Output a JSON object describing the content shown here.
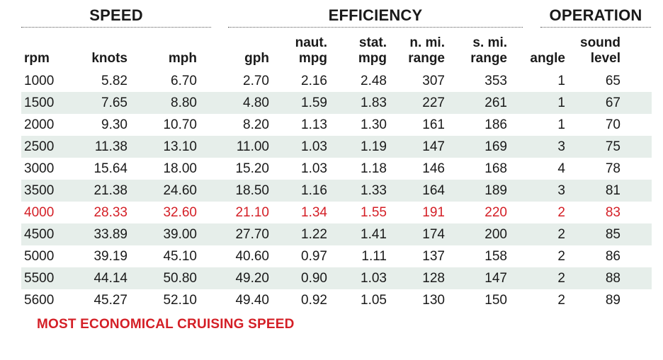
{
  "sections": {
    "speed": "SPEED",
    "efficiency": "EFFICIENCY",
    "operation": "OPERATION"
  },
  "headers": {
    "rpm": [
      "",
      "rpm"
    ],
    "knots": [
      "",
      "knots"
    ],
    "mph": [
      "",
      "mph"
    ],
    "gph": [
      "",
      "gph"
    ],
    "naut_mpg": [
      "naut.",
      "mpg"
    ],
    "stat_mpg": [
      "stat.",
      "mpg"
    ],
    "n_range": [
      "n. mi.",
      "range"
    ],
    "s_range": [
      "s. mi.",
      "range"
    ],
    "angle": [
      "",
      "angle"
    ],
    "sound": [
      "sound",
      "level"
    ]
  },
  "rows": [
    [
      "1000",
      "5.82",
      "6.70",
      "2.70",
      "2.16",
      "2.48",
      "307",
      "353",
      "1",
      "65"
    ],
    [
      "1500",
      "7.65",
      "8.80",
      "4.80",
      "1.59",
      "1.83",
      "227",
      "261",
      "1",
      "67"
    ],
    [
      "2000",
      "9.30",
      "10.70",
      "8.20",
      "1.13",
      "1.30",
      "161",
      "186",
      "1",
      "70"
    ],
    [
      "2500",
      "11.38",
      "13.10",
      "11.00",
      "1.03",
      "1.19",
      "147",
      "169",
      "3",
      "75"
    ],
    [
      "3000",
      "15.64",
      "18.00",
      "15.20",
      "1.03",
      "1.18",
      "146",
      "168",
      "4",
      "78"
    ],
    [
      "3500",
      "21.38",
      "24.60",
      "18.50",
      "1.16",
      "1.33",
      "164",
      "189",
      "3",
      "81"
    ],
    [
      "4000",
      "28.33",
      "32.60",
      "21.10",
      "1.34",
      "1.55",
      "191",
      "220",
      "2",
      "83"
    ],
    [
      "4500",
      "33.89",
      "39.00",
      "27.70",
      "1.22",
      "1.41",
      "174",
      "200",
      "2",
      "85"
    ],
    [
      "5000",
      "39.19",
      "45.10",
      "40.60",
      "0.97",
      "1.11",
      "137",
      "158",
      "2",
      "86"
    ],
    [
      "5500",
      "44.14",
      "50.80",
      "49.20",
      "0.90",
      "1.03",
      "128",
      "147",
      "2",
      "88"
    ],
    [
      "5600",
      "45.27",
      "52.10",
      "49.40",
      "0.92",
      "1.05",
      "130",
      "150",
      "2",
      "89"
    ]
  ],
  "highlight_row_index": 6,
  "highlight_color": "#d41f26",
  "stripe_color": "#e6eeea",
  "note": "MOST ECONOMICAL CRUISING SPEED"
}
